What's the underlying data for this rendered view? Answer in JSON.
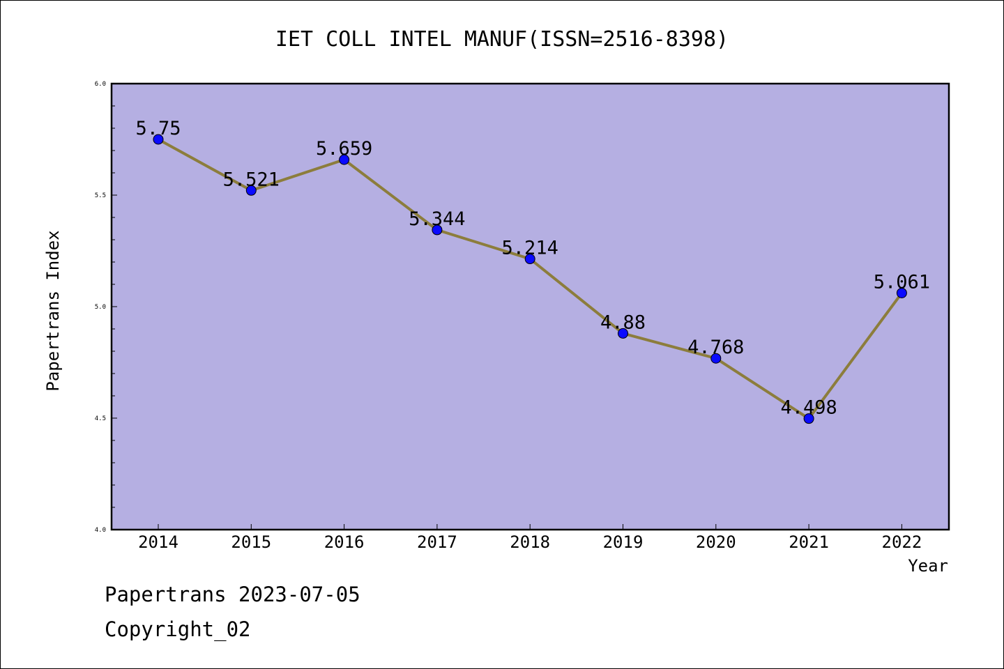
{
  "chart_data": {
    "type": "line",
    "title": "IET COLL INTEL MANUF(ISSN=2516-8398)",
    "xlabel": "Year",
    "ylabel": "Papertrans Index",
    "categories": [
      "2014",
      "2015",
      "2016",
      "2017",
      "2018",
      "2019",
      "2020",
      "2021",
      "2022"
    ],
    "values": [
      5.75,
      5.521,
      5.659,
      5.344,
      5.214,
      4.88,
      4.768,
      4.498,
      5.061
    ],
    "data_labels": [
      "5.75",
      "5.521",
      "5.659",
      "5.344",
      "5.214",
      "4.88",
      "4.768",
      "4.498",
      "5.061"
    ],
    "ylim": [
      4.0,
      6.0
    ],
    "yticks": [
      "4.0",
      "4.5",
      "5.0",
      "5.5",
      "6.0"
    ],
    "grid": false,
    "colors": {
      "plot_background": "#b5afe2",
      "line": "#8c7d3c",
      "marker": "#0a0aff"
    }
  },
  "footer": {
    "line1": "Papertrans 2023-07-05",
    "line2": "Copyright_02"
  }
}
